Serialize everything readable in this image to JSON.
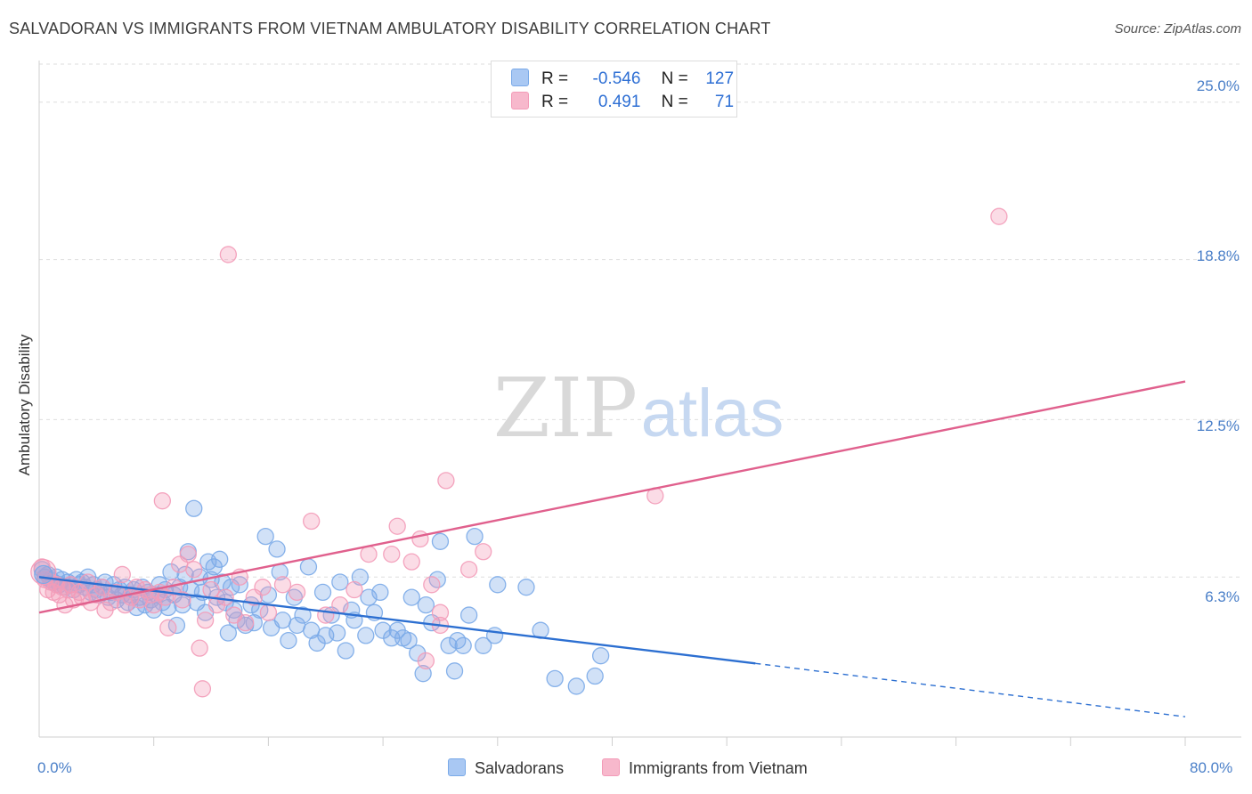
{
  "title": "SALVADORAN VS IMMIGRANTS FROM VIETNAM AMBULATORY DISABILITY CORRELATION CHART",
  "source": "Source: ZipAtlas.com",
  "watermark": {
    "zip": "ZIP",
    "atlas": "atlas"
  },
  "legend": {
    "rows": [
      {
        "r_label": "R =",
        "r_value": "-0.546",
        "n_label": "N =",
        "n_value": "127",
        "color": "#a9c8f3"
      },
      {
        "r_label": "R =",
        "r_value": " 0.491",
        "n_label": "N =",
        "n_value": " 71",
        "color": "#f7b8cc"
      }
    ]
  },
  "chart_data": {
    "type": "scatter",
    "title": "SALVADORAN VS IMMIGRANTS FROM VIETNAM AMBULATORY DISABILITY CORRELATION CHART",
    "xlabel": "",
    "ylabel": "Ambulatory Disability",
    "xlim": [
      0,
      80
    ],
    "ylim": [
      0,
      26.5
    ],
    "x_tick_labels": [
      "0.0%",
      "80.0%"
    ],
    "y_ticks": [
      6.3,
      12.5,
      18.8,
      25.0
    ],
    "y_tick_labels": [
      "6.3%",
      "12.5%",
      "18.8%",
      "25.0%"
    ],
    "grid": true,
    "series": [
      {
        "name": "Salvadorans",
        "color": "#7aaae8",
        "line_color": "#2c6fd1",
        "trend": {
          "x0": 0,
          "y0": 6.3,
          "x1": 50,
          "y1": 2.9,
          "dash_to_x": 80,
          "dash_to_y": 0.8
        },
        "points": [
          [
            0.2,
            6.6
          ],
          [
            0.4,
            6.3
          ],
          [
            0.6,
            6.4
          ],
          [
            0.8,
            6.2
          ],
          [
            1.0,
            6.1
          ],
          [
            1.2,
            6.3
          ],
          [
            1.4,
            6.0
          ],
          [
            1.6,
            6.2
          ],
          [
            1.8,
            5.9
          ],
          [
            2.0,
            6.1
          ],
          [
            2.2,
            6.0
          ],
          [
            2.4,
            5.8
          ],
          [
            2.6,
            6.2
          ],
          [
            2.8,
            6.0
          ],
          [
            3.0,
            6.1
          ],
          [
            3.2,
            5.9
          ],
          [
            3.4,
            6.3
          ],
          [
            3.6,
            5.7
          ],
          [
            3.8,
            6.0
          ],
          [
            4.0,
            5.8
          ],
          [
            4.2,
            5.6
          ],
          [
            4.4,
            5.9
          ],
          [
            4.6,
            6.1
          ],
          [
            4.8,
            5.5
          ],
          [
            5.0,
            5.7
          ],
          [
            5.2,
            6.0
          ],
          [
            5.4,
            5.4
          ],
          [
            5.6,
            5.8
          ],
          [
            5.8,
            5.6
          ],
          [
            6.0,
            5.9
          ],
          [
            6.2,
            5.3
          ],
          [
            6.4,
            5.6
          ],
          [
            6.6,
            5.8
          ],
          [
            6.8,
            5.1
          ],
          [
            7.0,
            5.5
          ],
          [
            7.2,
            5.9
          ],
          [
            7.4,
            5.2
          ],
          [
            7.6,
            5.7
          ],
          [
            7.8,
            5.4
          ],
          [
            8.0,
            5.0
          ],
          [
            8.2,
            5.6
          ],
          [
            8.4,
            6.0
          ],
          [
            8.6,
            5.3
          ],
          [
            8.8,
            5.8
          ],
          [
            9.0,
            5.1
          ],
          [
            9.2,
            6.5
          ],
          [
            9.4,
            5.6
          ],
          [
            9.6,
            4.4
          ],
          [
            9.8,
            5.9
          ],
          [
            10.0,
            5.2
          ],
          [
            10.2,
            6.4
          ],
          [
            10.4,
            7.3
          ],
          [
            10.6,
            5.8
          ],
          [
            10.8,
            9.0
          ],
          [
            11.0,
            5.3
          ],
          [
            11.2,
            6.3
          ],
          [
            11.4,
            5.7
          ],
          [
            11.6,
            4.9
          ],
          [
            11.8,
            6.9
          ],
          [
            12.0,
            6.2
          ],
          [
            12.2,
            6.7
          ],
          [
            12.4,
            5.5
          ],
          [
            12.6,
            7.0
          ],
          [
            12.8,
            6.1
          ],
          [
            13.0,
            5.3
          ],
          [
            13.2,
            4.1
          ],
          [
            13.4,
            5.9
          ],
          [
            13.6,
            5.0
          ],
          [
            13.8,
            4.6
          ],
          [
            14.0,
            6.0
          ],
          [
            14.4,
            4.4
          ],
          [
            14.8,
            5.2
          ],
          [
            15.0,
            4.5
          ],
          [
            15.4,
            5.0
          ],
          [
            15.8,
            7.9
          ],
          [
            16.0,
            5.6
          ],
          [
            16.2,
            4.3
          ],
          [
            16.6,
            7.4
          ],
          [
            16.8,
            6.5
          ],
          [
            17.0,
            4.6
          ],
          [
            17.4,
            3.8
          ],
          [
            17.8,
            5.5
          ],
          [
            18.0,
            4.4
          ],
          [
            18.4,
            4.8
          ],
          [
            18.8,
            6.7
          ],
          [
            19.0,
            4.2
          ],
          [
            19.4,
            3.7
          ],
          [
            19.8,
            5.7
          ],
          [
            20.0,
            4.0
          ],
          [
            20.4,
            4.8
          ],
          [
            20.8,
            4.1
          ],
          [
            21.0,
            6.1
          ],
          [
            21.4,
            3.4
          ],
          [
            21.8,
            5.0
          ],
          [
            22.0,
            4.6
          ],
          [
            22.4,
            6.3
          ],
          [
            22.8,
            4.0
          ],
          [
            23.0,
            5.5
          ],
          [
            23.4,
            4.9
          ],
          [
            23.8,
            5.7
          ],
          [
            24.0,
            4.2
          ],
          [
            24.6,
            3.9
          ],
          [
            25.0,
            4.2
          ],
          [
            25.4,
            3.9
          ],
          [
            25.8,
            3.8
          ],
          [
            26.0,
            5.5
          ],
          [
            26.4,
            3.3
          ],
          [
            26.8,
            2.5
          ],
          [
            27.0,
            5.2
          ],
          [
            27.4,
            4.5
          ],
          [
            27.8,
            6.2
          ],
          [
            28.0,
            7.7
          ],
          [
            28.6,
            3.6
          ],
          [
            29.0,
            2.6
          ],
          [
            29.2,
            3.8
          ],
          [
            29.6,
            3.6
          ],
          [
            30.0,
            4.8
          ],
          [
            30.4,
            7.9
          ],
          [
            31.0,
            3.6
          ],
          [
            31.8,
            4.0
          ],
          [
            32.0,
            6.0
          ],
          [
            34.0,
            5.9
          ],
          [
            35.0,
            4.2
          ],
          [
            36.0,
            2.3
          ],
          [
            37.5,
            2.0
          ],
          [
            38.8,
            2.4
          ],
          [
            39.2,
            3.2
          ]
        ]
      },
      {
        "name": "Immigrants from Vietnam",
        "color": "#f39bb8",
        "line_color": "#e0608d",
        "trend": {
          "x0": 0,
          "y0": 4.9,
          "x1": 80,
          "y1": 14.0
        },
        "points": [
          [
            0.2,
            6.7
          ],
          [
            0.4,
            6.2
          ],
          [
            0.6,
            5.8
          ],
          [
            0.8,
            6.1
          ],
          [
            1.0,
            5.7
          ],
          [
            1.2,
            6.0
          ],
          [
            1.4,
            5.6
          ],
          [
            1.6,
            5.9
          ],
          [
            1.8,
            5.2
          ],
          [
            2.0,
            5.8
          ],
          [
            2.2,
            6.0
          ],
          [
            2.4,
            5.4
          ],
          [
            2.8,
            5.7
          ],
          [
            3.0,
            5.5
          ],
          [
            3.4,
            6.1
          ],
          [
            3.6,
            5.3
          ],
          [
            4.0,
            5.6
          ],
          [
            4.4,
            5.9
          ],
          [
            4.6,
            5.0
          ],
          [
            5.0,
            5.3
          ],
          [
            5.4,
            5.7
          ],
          [
            5.8,
            6.4
          ],
          [
            6.0,
            5.2
          ],
          [
            6.4,
            5.5
          ],
          [
            6.8,
            5.9
          ],
          [
            7.0,
            5.4
          ],
          [
            7.4,
            5.8
          ],
          [
            7.8,
            5.6
          ],
          [
            8.0,
            5.2
          ],
          [
            8.4,
            5.7
          ],
          [
            8.6,
            9.3
          ],
          [
            8.8,
            5.5
          ],
          [
            9.0,
            4.3
          ],
          [
            9.4,
            5.9
          ],
          [
            9.8,
            6.8
          ],
          [
            10.0,
            5.4
          ],
          [
            10.4,
            7.2
          ],
          [
            10.8,
            6.6
          ],
          [
            11.2,
            3.5
          ],
          [
            11.4,
            1.9
          ],
          [
            11.6,
            4.6
          ],
          [
            12.0,
            5.8
          ],
          [
            12.4,
            5.2
          ],
          [
            13.0,
            5.5
          ],
          [
            13.2,
            19.0
          ],
          [
            13.6,
            4.8
          ],
          [
            14.0,
            6.3
          ],
          [
            14.4,
            4.5
          ],
          [
            15.0,
            5.5
          ],
          [
            15.6,
            5.9
          ],
          [
            16.0,
            4.9
          ],
          [
            17.0,
            6.0
          ],
          [
            18.0,
            5.7
          ],
          [
            19.0,
            8.5
          ],
          [
            20.0,
            4.8
          ],
          [
            21.0,
            5.2
          ],
          [
            22.0,
            5.8
          ],
          [
            23.0,
            7.2
          ],
          [
            24.6,
            7.2
          ],
          [
            25.0,
            8.3
          ],
          [
            26.0,
            6.9
          ],
          [
            26.6,
            7.8
          ],
          [
            27.0,
            3.0
          ],
          [
            27.4,
            6.0
          ],
          [
            28.0,
            4.4
          ],
          [
            28.4,
            10.1
          ],
          [
            30.0,
            6.6
          ],
          [
            31.0,
            7.3
          ],
          [
            43.0,
            9.5
          ],
          [
            67.0,
            20.5
          ],
          [
            28.0,
            4.9
          ]
        ]
      }
    ]
  },
  "bottom_legend": [
    {
      "label": "Salvadorans",
      "color": "#a9c8f3"
    },
    {
      "label": "Immigrants from Vietnam",
      "color": "#f7b8cc"
    }
  ]
}
